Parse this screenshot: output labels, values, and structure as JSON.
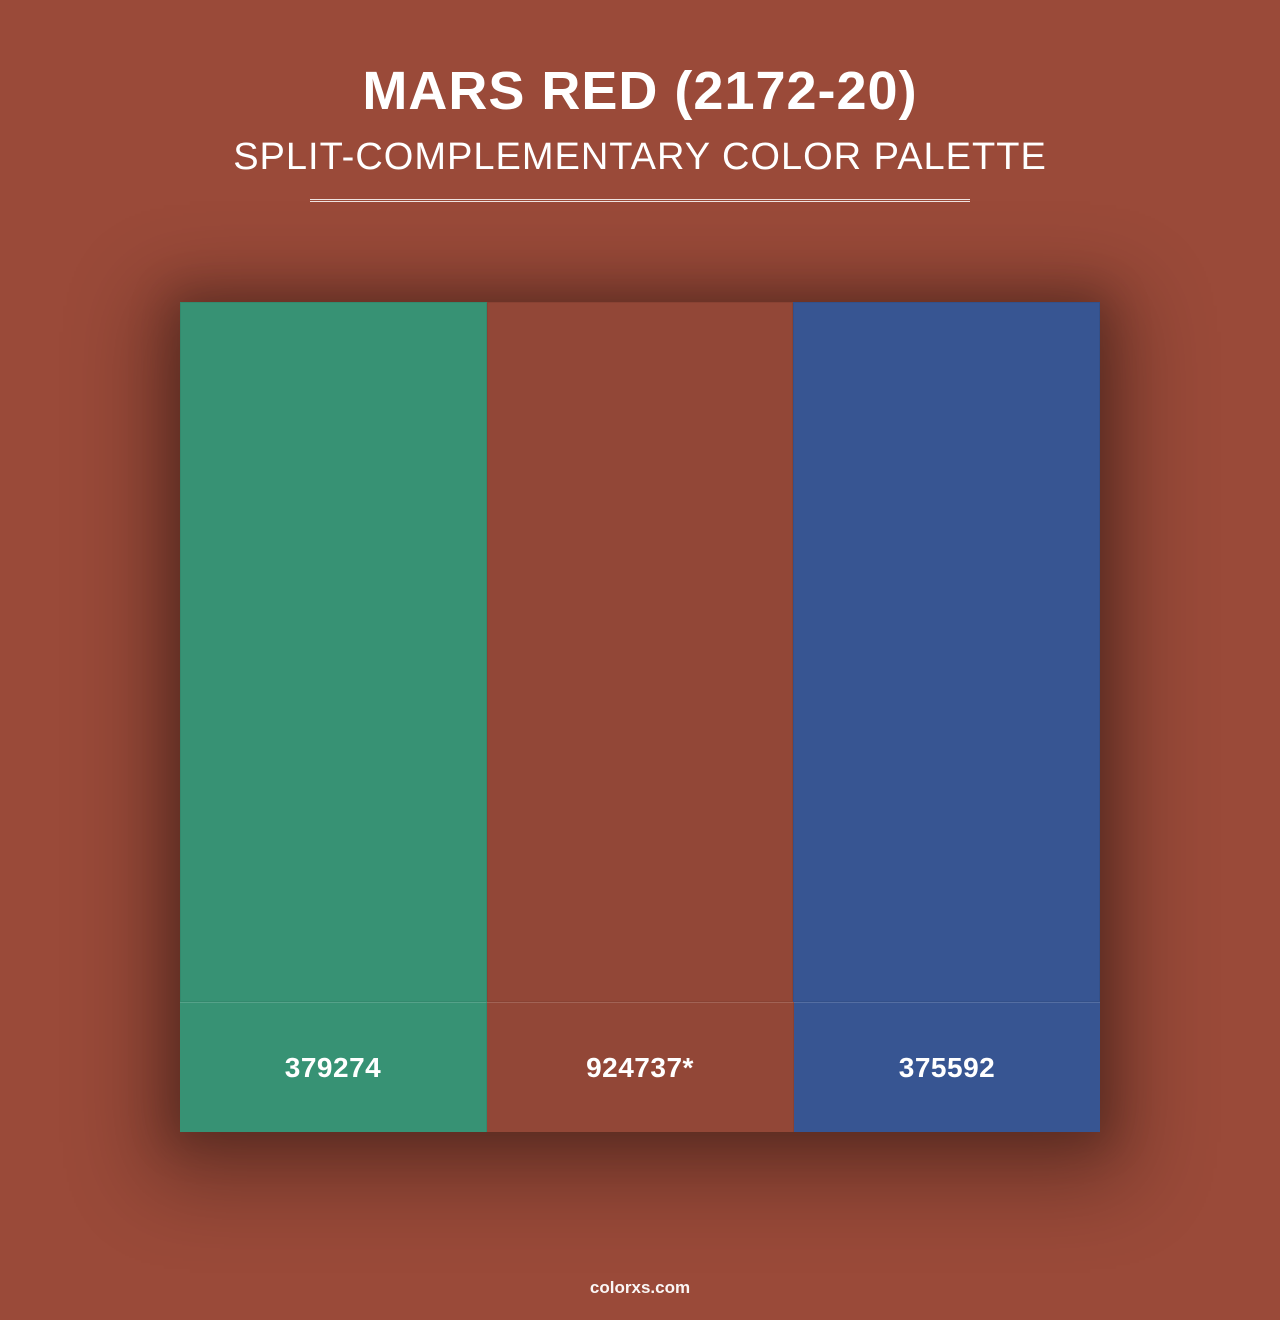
{
  "background_color": "#9a4a39",
  "text_color": "#ffffff",
  "header": {
    "title": "MARS RED (2172-20)",
    "subtitle": "SPLIT-COMPLEMENTARY COLOR PALETTE",
    "title_fontsize": 54,
    "subtitle_fontsize": 38,
    "divider_color": "rgba(255,255,255,0.85)"
  },
  "palette": {
    "type": "swatch-grid",
    "swatch_height": 700,
    "label_height": 130,
    "label_fontsize": 28,
    "shadow": "0 20px 80px 30px rgba(0,0,0,0.30)",
    "swatches": [
      {
        "hex": "#379274",
        "label": "379274"
      },
      {
        "hex": "#924737",
        "label": "924737*"
      },
      {
        "hex": "#375592",
        "label": "375592"
      }
    ]
  },
  "footer": {
    "text": "colorxs.com",
    "fontsize": 17
  }
}
